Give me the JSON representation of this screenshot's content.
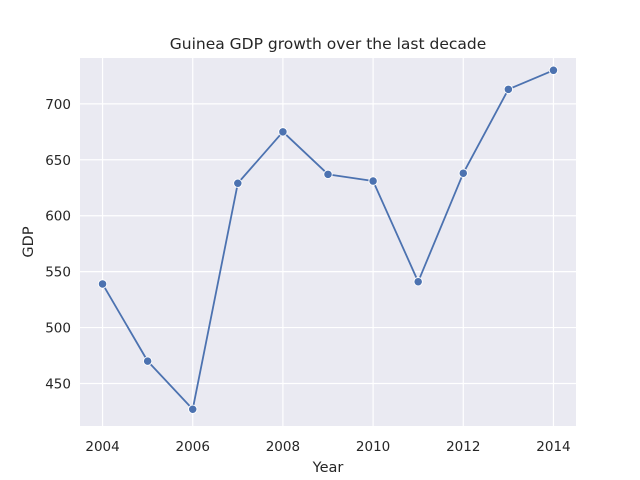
{
  "chart_data": {
    "type": "line",
    "title": "Guinea GDP growth over the last decade",
    "xlabel": "Year",
    "ylabel": "GDP",
    "x": [
      2004,
      2005,
      2006,
      2007,
      2008,
      2009,
      2010,
      2011,
      2012,
      2013,
      2014
    ],
    "series": [
      {
        "values": [
          539,
          470,
          427,
          629,
          675,
          637,
          631,
          541,
          638,
          713,
          730
        ]
      }
    ],
    "xlim": [
      2003.5,
      2014.5
    ],
    "ylim": [
      412,
      741
    ],
    "xticks": [
      2004,
      2006,
      2008,
      2010,
      2012,
      2014
    ],
    "yticks": [
      450,
      500,
      550,
      600,
      650,
      700
    ],
    "grid": true,
    "colors": {
      "line": "#4c72b0",
      "plot_background": "#eaeaf2",
      "grid": "#ffffff"
    }
  }
}
